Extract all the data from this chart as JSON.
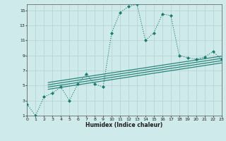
{
  "xlabel": "Humidex (Indice chaleur)",
  "background_color": "#ceeaea",
  "grid_color": "#b8d4d4",
  "line_color": "#1a7a6e",
  "xlim": [
    0,
    23
  ],
  "ylim": [
    1,
    15.8
  ],
  "xticks": [
    0,
    1,
    2,
    3,
    4,
    5,
    6,
    7,
    8,
    9,
    10,
    11,
    12,
    13,
    14,
    15,
    16,
    17,
    18,
    19,
    20,
    21,
    22,
    23
  ],
  "yticks": [
    1,
    3,
    5,
    7,
    9,
    11,
    13,
    15
  ],
  "main_series_x": [
    0,
    1,
    2,
    3,
    4,
    5,
    6,
    7,
    8,
    9,
    10,
    11,
    12,
    13,
    14,
    15,
    16,
    17,
    18,
    19,
    20,
    21,
    22,
    23
  ],
  "main_series_y": [
    2.5,
    1.0,
    3.5,
    4.0,
    4.8,
    3.0,
    5.2,
    6.5,
    5.2,
    4.8,
    12.0,
    14.7,
    15.5,
    15.8,
    11.0,
    12.0,
    14.5,
    14.3,
    9.0,
    8.7,
    8.5,
    8.8,
    9.5,
    8.5
  ],
  "regression_lines": [
    {
      "x0": 2.5,
      "y0": 4.5,
      "x1": 23,
      "y1": 8.0
    },
    {
      "x0": 2.5,
      "y0": 4.8,
      "x1": 23,
      "y1": 8.3
    },
    {
      "x0": 2.5,
      "y0": 5.1,
      "x1": 23,
      "y1": 8.6
    },
    {
      "x0": 2.5,
      "y0": 5.4,
      "x1": 23,
      "y1": 8.9
    }
  ]
}
